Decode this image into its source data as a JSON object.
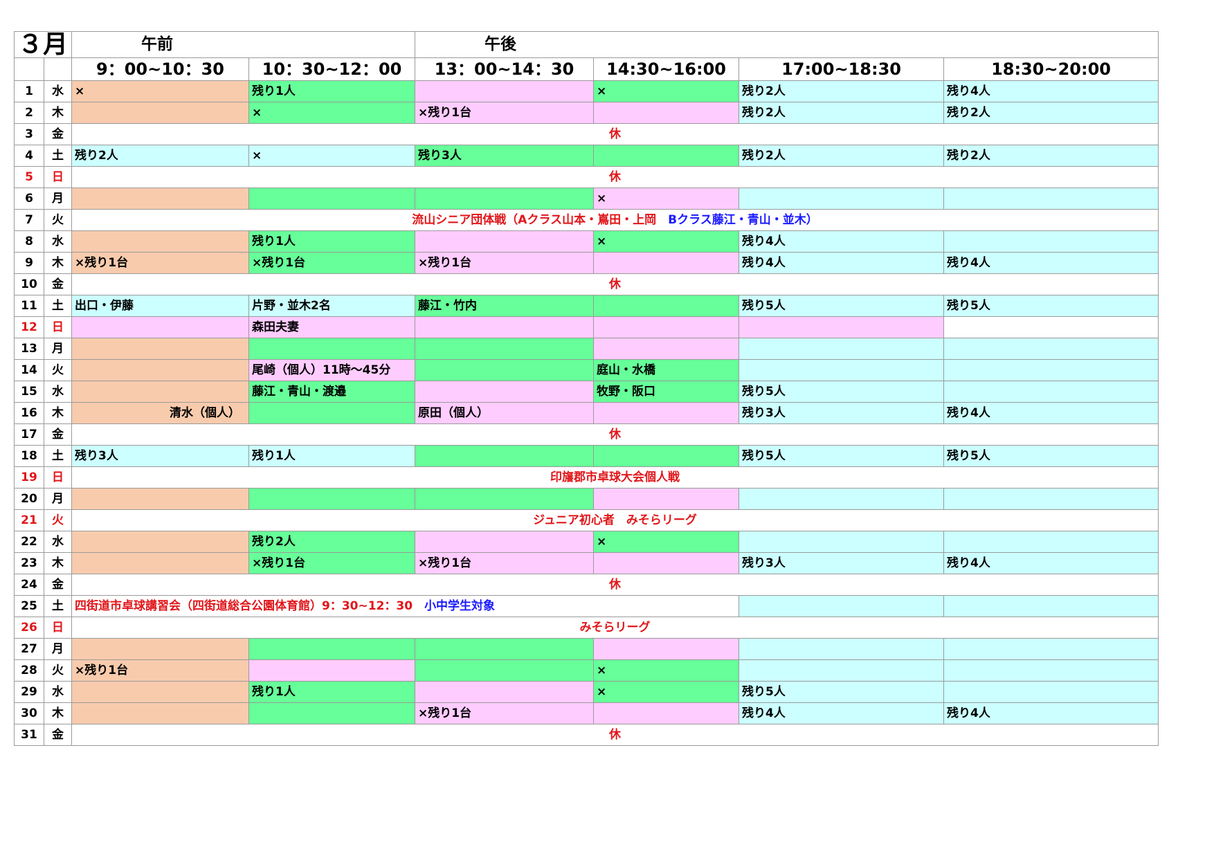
{
  "header": {
    "month": "３月",
    "am": "午前",
    "pm": "午後",
    "slots": [
      "9：00~10：30",
      "10：30~12：00",
      "13：00~14：30",
      "14:30~16:00",
      "17:00~18:30",
      "18:30~20:00"
    ]
  },
  "colors": {
    "orange": "#f8cbad",
    "green": "#66ff99",
    "pink": "#ffccff",
    "cyan": "#ccffff",
    "red_text": "#e0161a",
    "blue_text": "#1a1aff"
  },
  "rows": [
    {
      "day": "1",
      "wd": "水",
      "cells": [
        {
          "t": "×",
          "c": "o"
        },
        {
          "t": "残り1人",
          "c": "g"
        },
        {
          "t": "",
          "c": "p"
        },
        {
          "t": "×",
          "c": "g"
        },
        {
          "t": "残り2人",
          "c": "b"
        },
        {
          "t": "残り4人",
          "c": "b"
        }
      ]
    },
    {
      "day": "2",
      "wd": "木",
      "cells": [
        {
          "t": "",
          "c": "o"
        },
        {
          "t": "×",
          "c": "g"
        },
        {
          "t": "×残り1台",
          "c": "p"
        },
        {
          "t": "",
          "c": "p"
        },
        {
          "t": "残り2人",
          "c": "b"
        },
        {
          "t": "残り2人",
          "c": "b"
        }
      ]
    },
    {
      "day": "3",
      "wd": "金",
      "full": "休"
    },
    {
      "day": "4",
      "wd": "土",
      "cells": [
        {
          "t": "残り2人",
          "c": "b"
        },
        {
          "t": "×",
          "c": "b"
        },
        {
          "t": "残り3人",
          "c": "g"
        },
        {
          "t": "",
          "c": "g"
        },
        {
          "t": "残り2人",
          "c": "b"
        },
        {
          "t": "残り2人",
          "c": "b"
        }
      ]
    },
    {
      "day": "5",
      "wd": "日",
      "red": true,
      "full": "休"
    },
    {
      "day": "6",
      "wd": "月",
      "cells": [
        {
          "t": "",
          "c": "o"
        },
        {
          "t": "",
          "c": "g"
        },
        {
          "t": "",
          "c": "g"
        },
        {
          "t": "×",
          "c": "p"
        },
        {
          "t": "",
          "c": "b"
        },
        {
          "t": "",
          "c": "b"
        }
      ]
    },
    {
      "day": "7",
      "wd": "火",
      "full": "",
      "parts": [
        {
          "t": "流山シニア団体戦（Aクラス山本・嶌田・上岡　",
          "k": "red"
        },
        {
          "t": "Bクラス藤江・青山・並木）",
          "k": "blue"
        }
      ]
    },
    {
      "day": "8",
      "wd": "水",
      "cells": [
        {
          "t": "",
          "c": "o"
        },
        {
          "t": "残り1人",
          "c": "g"
        },
        {
          "t": "",
          "c": "p"
        },
        {
          "t": "×",
          "c": "g"
        },
        {
          "t": "残り4人",
          "c": "b"
        },
        {
          "t": "",
          "c": "b"
        }
      ]
    },
    {
      "day": "9",
      "wd": "木",
      "cells": [
        {
          "t": "×残り1台",
          "c": "o"
        },
        {
          "t": "×残り1台",
          "c": "g"
        },
        {
          "t": "×残り1台",
          "c": "p"
        },
        {
          "t": "",
          "c": "p"
        },
        {
          "t": "残り4人",
          "c": "b"
        },
        {
          "t": "残り4人",
          "c": "b"
        }
      ]
    },
    {
      "day": "10",
      "wd": "金",
      "full": "休"
    },
    {
      "day": "11",
      "wd": "土",
      "cells": [
        {
          "t": "出口・伊藤",
          "c": "b"
        },
        {
          "t": "片野・並木2名",
          "c": "b"
        },
        {
          "t": "藤江・竹内",
          "c": "g"
        },
        {
          "t": "",
          "c": "g"
        },
        {
          "t": "残り5人",
          "c": "b"
        },
        {
          "t": "残り5人",
          "c": "b"
        }
      ]
    },
    {
      "day": "12",
      "wd": "日",
      "red": true,
      "cells": [
        {
          "t": "",
          "c": "p"
        },
        {
          "t": "森田夫妻",
          "c": "p"
        },
        {
          "t": "",
          "c": "p"
        },
        {
          "t": "",
          "c": "p"
        },
        {
          "t": "",
          "c": "p"
        },
        {
          "t": "",
          "c": "w"
        }
      ]
    },
    {
      "day": "13",
      "wd": "月",
      "cells": [
        {
          "t": "",
          "c": "o"
        },
        {
          "t": "",
          "c": "g"
        },
        {
          "t": "",
          "c": "g"
        },
        {
          "t": "",
          "c": "p"
        },
        {
          "t": "",
          "c": "b"
        },
        {
          "t": "",
          "c": "b"
        }
      ]
    },
    {
      "day": "14",
      "wd": "火",
      "cells": [
        {
          "t": "",
          "c": "o"
        },
        {
          "t": "尾崎（個人）11時～45分",
          "c": "p"
        },
        {
          "t": "",
          "c": "g"
        },
        {
          "t": "庭山・水橋",
          "c": "g"
        },
        {
          "t": "",
          "c": "b"
        },
        {
          "t": "",
          "c": "b"
        }
      ]
    },
    {
      "day": "15",
      "wd": "水",
      "cells": [
        {
          "t": "",
          "c": "o"
        },
        {
          "t": "藤江・青山・渡邉",
          "c": "g"
        },
        {
          "t": "",
          "c": "p"
        },
        {
          "t": "牧野・阪口",
          "c": "g"
        },
        {
          "t": "残り5人",
          "c": "b"
        },
        {
          "t": "",
          "c": "b"
        }
      ]
    },
    {
      "day": "16",
      "wd": "木",
      "cells": [
        {
          "t": "清水（個人）",
          "c": "o",
          "align": "right"
        },
        {
          "t": "",
          "c": "g"
        },
        {
          "t": "原田（個人）",
          "c": "p"
        },
        {
          "t": "",
          "c": "p"
        },
        {
          "t": "残り3人",
          "c": "b"
        },
        {
          "t": "残り4人",
          "c": "b"
        }
      ]
    },
    {
      "day": "17",
      "wd": "金",
      "full": "休"
    },
    {
      "day": "18",
      "wd": "土",
      "cells": [
        {
          "t": "残り3人",
          "c": "b"
        },
        {
          "t": "残り1人",
          "c": "b"
        },
        {
          "t": "",
          "c": "g"
        },
        {
          "t": "",
          "c": "g"
        },
        {
          "t": "残り5人",
          "c": "b"
        },
        {
          "t": "残り5人",
          "c": "b"
        }
      ]
    },
    {
      "day": "19",
      "wd": "日",
      "red": true,
      "full": "印旛郡市卓球大会個人戦"
    },
    {
      "day": "20",
      "wd": "月",
      "cells": [
        {
          "t": "",
          "c": "o"
        },
        {
          "t": "",
          "c": "g"
        },
        {
          "t": "",
          "c": "g"
        },
        {
          "t": "",
          "c": "p"
        },
        {
          "t": "",
          "c": "b"
        },
        {
          "t": "",
          "c": "b"
        }
      ]
    },
    {
      "day": "21",
      "wd": "火",
      "red": true,
      "full": "ジュニア初心者　みそらリーグ"
    },
    {
      "day": "22",
      "wd": "水",
      "cells": [
        {
          "t": "",
          "c": "o"
        },
        {
          "t": "残り2人",
          "c": "g"
        },
        {
          "t": "",
          "c": "p"
        },
        {
          "t": "×",
          "c": "g"
        },
        {
          "t": "",
          "c": "b"
        },
        {
          "t": "",
          "c": "b"
        }
      ]
    },
    {
      "day": "23",
      "wd": "木",
      "cells": [
        {
          "t": "",
          "c": "o"
        },
        {
          "t": "×残り1台",
          "c": "g"
        },
        {
          "t": "×残り1台",
          "c": "p"
        },
        {
          "t": "",
          "c": "p"
        },
        {
          "t": "残り3人",
          "c": "b"
        },
        {
          "t": "残り4人",
          "c": "b"
        }
      ]
    },
    {
      "day": "24",
      "wd": "金",
      "full": "休"
    },
    {
      "day": "25",
      "wd": "土",
      "event": {
        "t1": "四街道市卓球講習会（四街道総合公園体育館）9：30~12：30　",
        "t2": "小中学生対象",
        "span": 4
      },
      "cells": [
        {
          "t": "",
          "c": "b"
        },
        {
          "t": "",
          "c": "b"
        }
      ]
    },
    {
      "day": "26",
      "wd": "日",
      "red": true,
      "full": "みそらリーグ"
    },
    {
      "day": "27",
      "wd": "月",
      "cells": [
        {
          "t": "",
          "c": "o"
        },
        {
          "t": "",
          "c": "g"
        },
        {
          "t": "",
          "c": "g"
        },
        {
          "t": "",
          "c": "p"
        },
        {
          "t": "",
          "c": "b"
        },
        {
          "t": "",
          "c": "b"
        }
      ]
    },
    {
      "day": "28",
      "wd": "火",
      "cells": [
        {
          "t": "×残り1台",
          "c": "o"
        },
        {
          "t": "",
          "c": "p"
        },
        {
          "t": "",
          "c": "g"
        },
        {
          "t": "×",
          "c": "g"
        },
        {
          "t": "",
          "c": "b"
        },
        {
          "t": "",
          "c": "b"
        }
      ]
    },
    {
      "day": "29",
      "wd": "水",
      "cells": [
        {
          "t": "",
          "c": "o"
        },
        {
          "t": "残り1人",
          "c": "g"
        },
        {
          "t": "",
          "c": "p"
        },
        {
          "t": "×",
          "c": "g"
        },
        {
          "t": "残り5人",
          "c": "b"
        },
        {
          "t": "",
          "c": "b"
        }
      ]
    },
    {
      "day": "30",
      "wd": "木",
      "cells": [
        {
          "t": "",
          "c": "o"
        },
        {
          "t": "",
          "c": "g"
        },
        {
          "t": "×残り1台",
          "c": "p"
        },
        {
          "t": "",
          "c": "p"
        },
        {
          "t": "残り4人",
          "c": "b"
        },
        {
          "t": "残り4人",
          "c": "b"
        }
      ]
    },
    {
      "day": "31",
      "wd": "金",
      "full": "休"
    }
  ]
}
